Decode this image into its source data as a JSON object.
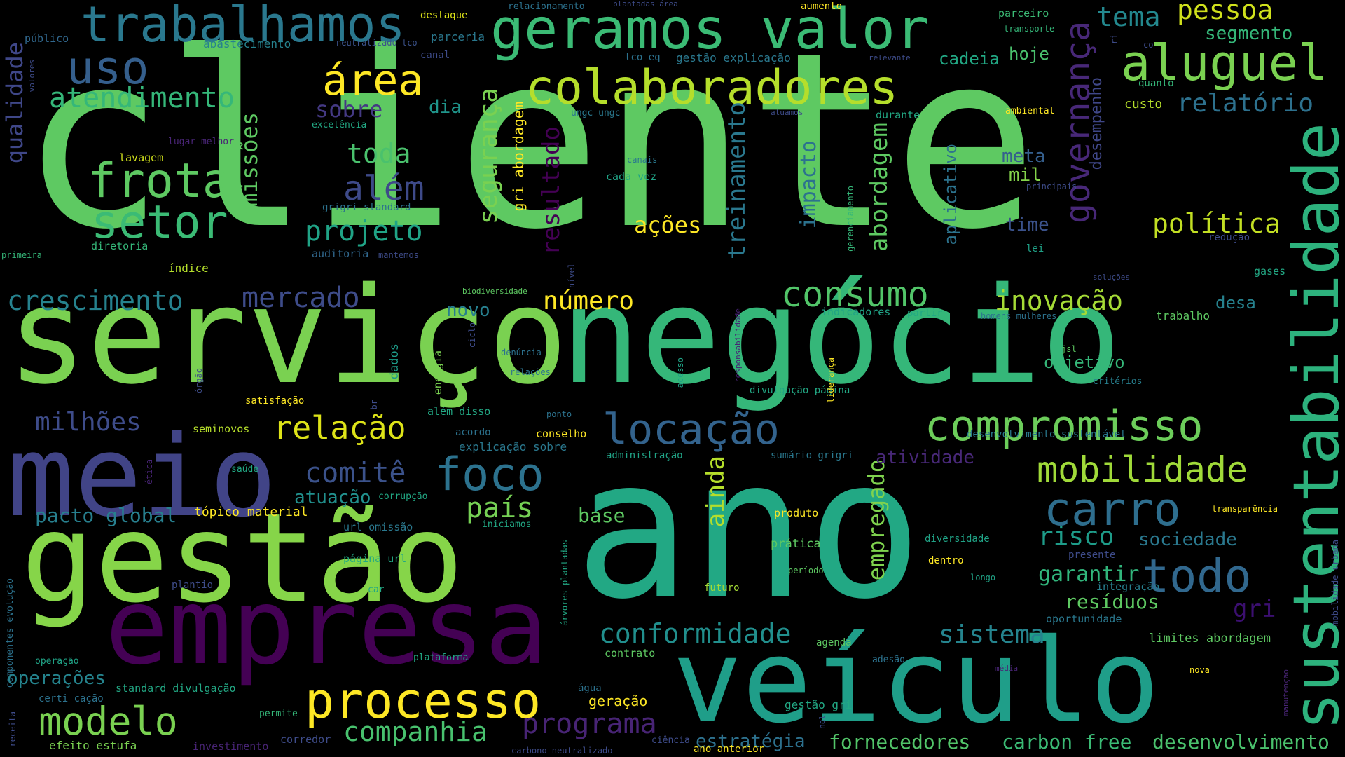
{
  "words": [
    {
      "text": "cliente",
      "color": "#5ec962"
    },
    {
      "text": "serviço",
      "color": "#7ad151"
    },
    {
      "text": "negócio",
      "color": "#35b779"
    },
    {
      "text": "ano",
      "color": "#22a884"
    },
    {
      "text": "gestão",
      "color": "#86d549"
    },
    {
      "text": "meio",
      "color": "#414487"
    },
    {
      "text": "empresa",
      "color": "#440154"
    },
    {
      "text": "veículo",
      "color": "#1f9e89"
    },
    {
      "text": "sustentabilidade",
      "color": "#2db27d"
    },
    {
      "text": "geramos valor",
      "color": "#3bbb75"
    },
    {
      "text": "trabalhamos",
      "color": "#2a788e"
    },
    {
      "text": "colaboradores",
      "color": "#b5de2b"
    },
    {
      "text": "aluguel",
      "color": "#7ad151"
    },
    {
      "text": "uso",
      "color": "#355f8d"
    },
    {
      "text": "área",
      "color": "#fde725"
    },
    {
      "text": "atendimento",
      "color": "#35b779"
    },
    {
      "text": "frota",
      "color": "#5ec962"
    },
    {
      "text": "setor",
      "color": "#3bbb75"
    },
    {
      "text": "compromisso",
      "color": "#6ccd5a"
    },
    {
      "text": "locação",
      "color": "#33638d"
    },
    {
      "text": "relação",
      "color": "#dde318"
    },
    {
      "text": "foco",
      "color": "#2c728e"
    },
    {
      "text": "carro",
      "color": "#2e6e8e"
    },
    {
      "text": "mobilidade",
      "color": "#a0da39"
    },
    {
      "text": "processo",
      "color": "#fde725"
    },
    {
      "text": "modelo",
      "color": "#7ad151"
    },
    {
      "text": "todo",
      "color": "#31688e"
    },
    {
      "text": "consumo",
      "color": "#52c569"
    },
    {
      "text": "inovação",
      "color": "#a5db36"
    },
    {
      "text": "política",
      "color": "#c2df23"
    },
    {
      "text": "governança",
      "color": "#482878"
    },
    {
      "text": "projeto",
      "color": "#20a386"
    },
    {
      "text": "além",
      "color": "#3e4a89"
    },
    {
      "text": "toda",
      "color": "#4ac16d"
    },
    {
      "text": "crescimento",
      "color": "#26828e"
    },
    {
      "text": "mercado",
      "color": "#3e4c8a"
    },
    {
      "text": "emissões",
      "color": "#5ec962"
    },
    {
      "text": "qualidade",
      "color": "#3f4788"
    },
    {
      "text": "número",
      "color": "#fde725"
    },
    {
      "text": "ações",
      "color": "#fde725"
    },
    {
      "text": "sobre",
      "color": "#443983"
    },
    {
      "text": "dia",
      "color": "#1f958b"
    },
    {
      "text": "relatório",
      "color": "#2d718e"
    },
    {
      "text": "tema",
      "color": "#23888e"
    },
    {
      "text": "pessoa",
      "color": "#d0e11c"
    },
    {
      "text": "segmento",
      "color": "#35b779"
    },
    {
      "text": "cadeia",
      "color": "#22a884"
    },
    {
      "text": "hoje",
      "color": "#4ac16d"
    },
    {
      "text": "custo",
      "color": "#b5de2b"
    },
    {
      "text": "meta",
      "color": "#355f8d"
    },
    {
      "text": "mil",
      "color": "#84d44b"
    },
    {
      "text": "time",
      "color": "#3b528b"
    },
    {
      "text": "lei",
      "color": "#1fa187"
    },
    {
      "text": "segurança",
      "color": "#7ad151"
    },
    {
      "text": "resultado",
      "color": "#440154"
    },
    {
      "text": "treinamento",
      "color": "#2a788e"
    },
    {
      "text": "impacto",
      "color": "#2c728e"
    },
    {
      "text": "abordagem",
      "color": "#5ec962"
    },
    {
      "text": "aplicativo",
      "color": "#2c738e"
    },
    {
      "text": "desempenho",
      "color": "#3f4788"
    },
    {
      "text": "comitê",
      "color": "#3b528b"
    },
    {
      "text": "país",
      "color": "#75d054"
    },
    {
      "text": "ainda",
      "color": "#b5de2b"
    },
    {
      "text": "atuação",
      "color": "#21908d"
    },
    {
      "text": "milhões",
      "color": "#3e4c8a"
    },
    {
      "text": "pacto global",
      "color": "#277f8e"
    },
    {
      "text": "base",
      "color": "#5ec962"
    },
    {
      "text": "empregado",
      "color": "#7fd34e"
    },
    {
      "text": "risco",
      "color": "#1e9c89"
    },
    {
      "text": "sociedade",
      "color": "#2a788e"
    },
    {
      "text": "garantir",
      "color": "#31b57b"
    },
    {
      "text": "resíduos",
      "color": "#5ec962"
    },
    {
      "text": "gri",
      "color": "#3b0f70"
    },
    {
      "text": "sistema",
      "color": "#25848e"
    },
    {
      "text": "conformidade",
      "color": "#218f8d"
    },
    {
      "text": "companhia",
      "color": "#48c16e"
    },
    {
      "text": "programa",
      "color": "#482475"
    },
    {
      "text": "estratégia",
      "color": "#2d718e"
    },
    {
      "text": "fornecedores",
      "color": "#52c569"
    },
    {
      "text": "carbon free",
      "color": "#3bbb75"
    },
    {
      "text": "desenvolvimento",
      "color": "#4ac16d"
    },
    {
      "text": "operações",
      "color": "#25848e"
    },
    {
      "text": "objetivo",
      "color": "#35b779"
    },
    {
      "text": "desa",
      "color": "#26828e"
    },
    {
      "text": "novo",
      "color": "#277f8e"
    },
    {
      "text": "atividade",
      "color": "#482878"
    },
    {
      "text": "tópico material",
      "color": "#fde725"
    },
    {
      "text": "gri abordagem",
      "color": "#fde725"
    },
    {
      "text": "lavagem",
      "color": "#d0e11c"
    },
    {
      "text": "diretoria",
      "color": "#35b779"
    },
    {
      "text": "índice",
      "color": "#b5de2b"
    },
    {
      "text": "auditoria",
      "color": "#31688e"
    },
    {
      "text": "mantemos",
      "color": "#3e4c8a"
    },
    {
      "text": "grigri standard",
      "color": "#2c728e"
    },
    {
      "text": "excelência",
      "color": "#22a884"
    },
    {
      "text": "lugar melhor",
      "color": "#482475"
    },
    {
      "text": "público",
      "color": "#31688e"
    },
    {
      "text": "abastecimento",
      "color": "#26828e"
    },
    {
      "text": "destaque",
      "color": "#dde318"
    },
    {
      "text": "parceria",
      "color": "#2a788e"
    },
    {
      "text": "canal",
      "color": "#3e4c8a"
    },
    {
      "text": "neutralizado tco",
      "color": "#3b528b"
    },
    {
      "text": "relacionamento",
      "color": "#2c728e"
    },
    {
      "text": "plantadas área",
      "color": "#3e4c8a"
    },
    {
      "text": "aumento",
      "color": "#fde725"
    },
    {
      "text": "tco eq",
      "color": "#2c728e"
    },
    {
      "text": "gestão explicação",
      "color": "#2a788e"
    },
    {
      "text": "relevante",
      "color": "#3e4c8a"
    },
    {
      "text": "ungc ungc",
      "color": "#2a788e"
    },
    {
      "text": "atuamos",
      "color": "#3e4c8a"
    },
    {
      "text": "durante",
      "color": "#22a884"
    },
    {
      "text": "ambiental",
      "color": "#fde725"
    },
    {
      "text": "parceiro",
      "color": "#3bbb75"
    },
    {
      "text": "transporte",
      "color": "#35b779"
    },
    {
      "text": "quanto",
      "color": "#35b779"
    },
    {
      "text": "canais",
      "color": "#2a788e"
    },
    {
      "text": "cada vez",
      "color": "#20a386"
    },
    {
      "text": "principais",
      "color": "#3e4c8a"
    },
    {
      "text": "redução",
      "color": "#3e4c8a"
    },
    {
      "text": "gases",
      "color": "#22a884"
    },
    {
      "text": "soluções",
      "color": "#3e4c8a"
    },
    {
      "text": "trabalho",
      "color": "#5ec962"
    },
    {
      "text": "jsl",
      "color": "#5ec962"
    },
    {
      "text": "critérios",
      "color": "#277f8e"
    },
    {
      "text": "desenvolvimento sustentável",
      "color": "#2a788e"
    },
    {
      "text": "indicadores",
      "color": "#20a386"
    },
    {
      "text": "partir",
      "color": "#22a884"
    },
    {
      "text": "homens mulheres",
      "color": "#2c728e"
    },
    {
      "text": "biodiversidade",
      "color": "#5ec962"
    },
    {
      "text": "primeira",
      "color": "#35b779"
    },
    {
      "text": "satisfação",
      "color": "#fde725"
    },
    {
      "text": "seminovos",
      "color": "#b5de2b"
    },
    {
      "text": "dados",
      "color": "#1e9c89"
    },
    {
      "text": "energia",
      "color": "#7ad151"
    },
    {
      "text": "denúncia",
      "color": "#2c728e"
    },
    {
      "text": "relações",
      "color": "#2c728e"
    },
    {
      "text": "ponto",
      "color": "#2c728e"
    },
    {
      "text": "além disso",
      "color": "#22a884"
    },
    {
      "text": "acordo",
      "color": "#2c728e"
    },
    {
      "text": "conselho",
      "color": "#fde725"
    },
    {
      "text": "explicação sobre",
      "color": "#2a788e"
    },
    {
      "text": "administração",
      "color": "#20a386"
    },
    {
      "text": "sumário grigri",
      "color": "#2a788e"
    },
    {
      "text": "divulgação página",
      "color": "#22a884"
    },
    {
      "text": "produto",
      "color": "#fde725"
    },
    {
      "text": "prática",
      "color": "#5ec962"
    },
    {
      "text": "diversidade",
      "color": "#20a386"
    },
    {
      "text": "dentro",
      "color": "#fde725"
    },
    {
      "text": "longo",
      "color": "#20a386"
    },
    {
      "text": "período",
      "color": "#5ec962"
    },
    {
      "text": "futuro",
      "color": "#a5db36"
    },
    {
      "text": "agenda",
      "color": "#5ec962"
    },
    {
      "text": "contrato",
      "color": "#5ec962"
    },
    {
      "text": "adesão",
      "color": "#2c728e"
    },
    {
      "text": "média",
      "color": "#482475"
    },
    {
      "text": "nova",
      "color": "#fde725"
    },
    {
      "text": "integração",
      "color": "#277f8e"
    },
    {
      "text": "oportunidade",
      "color": "#2a788e"
    },
    {
      "text": "presente",
      "color": "#3e4c8a"
    },
    {
      "text": "transparência",
      "color": "#fde725"
    },
    {
      "text": "limites abordagem",
      "color": "#5ec962"
    },
    {
      "text": "saúde",
      "color": "#22a884"
    },
    {
      "text": "corrupção",
      "color": "#22a884"
    },
    {
      "text": "url omissão",
      "color": "#2a788e"
    },
    {
      "text": "iniciamos",
      "color": "#22a884"
    },
    {
      "text": "página url",
      "color": "#22a884"
    },
    {
      "text": "plantio",
      "color": "#3e4c8a"
    },
    {
      "text": "car",
      "color": "#22a884"
    },
    {
      "text": "plataforma",
      "color": "#22a884"
    },
    {
      "text": "operação",
      "color": "#20a386"
    },
    {
      "text": "standard divulgação",
      "color": "#22a884"
    },
    {
      "text": "água",
      "color": "#2c728e"
    },
    {
      "text": "geração",
      "color": "#fde725"
    },
    {
      "text": "certi cação",
      "color": "#2c728e"
    },
    {
      "text": "permite",
      "color": "#35b779"
    },
    {
      "text": "corredor",
      "color": "#3e4c8a"
    },
    {
      "text": "efeito estufa",
      "color": "#7ad151"
    },
    {
      "text": "investimento",
      "color": "#482475"
    },
    {
      "text": "carbono neutralizado",
      "color": "#3e4c8a"
    },
    {
      "text": "ciência",
      "color": "#3e4c8a"
    },
    {
      "text": "ano anterior",
      "color": "#fde725"
    },
    {
      "text": "gestão gri",
      "color": "#22a884"
    },
    {
      "text": "valores",
      "color": "#3e4c8a"
    },
    {
      "text": "receita",
      "color": "#3e4c8a"
    },
    {
      "text": "componentes evolução",
      "color": "#2c728e"
    },
    {
      "text": "ética",
      "color": "#482475"
    },
    {
      "text": "órgão",
      "color": "#3e4c8a"
    },
    {
      "text": "ciclo",
      "color": "#3e4c8a"
    },
    {
      "text": "br",
      "color": "#3e4c8a"
    },
    {
      "text": "árvores plantadas",
      "color": "#22a884"
    },
    {
      "text": "nível",
      "color": "#3e4c8a"
    },
    {
      "text": "acesso",
      "color": "#20a386"
    },
    {
      "text": "responsabilidade",
      "color": "#482475"
    },
    {
      "text": "liderança",
      "color": "#fde725"
    },
    {
      "text": "gerenciamento",
      "color": "#35b779"
    },
    {
      "text": "mobilidade urbana",
      "color": "#3e4c8a"
    },
    {
      "text": "manutenção",
      "color": "#482475"
    },
    {
      "text": "co",
      "color": "#3e4c8a"
    },
    {
      "text": "ri",
      "color": "#3e4c8a"
    },
    {
      "text": "nal",
      "color": "#3e4c8a"
    }
  ]
}
